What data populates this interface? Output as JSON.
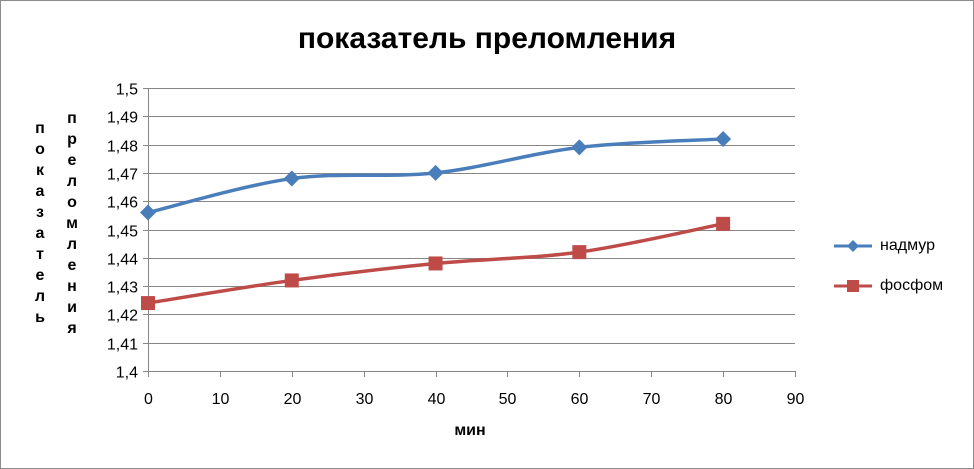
{
  "chart_data": {
    "type": "line",
    "title": "показатель преломления",
    "xlabel": "мин",
    "ylabel": "показатель преломления",
    "ylabel_columns": [
      "показатель",
      "преломления"
    ],
    "xlim": [
      0,
      90
    ],
    "ylim": [
      1.4,
      1.5
    ],
    "x_ticks": [
      "0",
      "10",
      "20",
      "30",
      "40",
      "50",
      "60",
      "70",
      "80",
      "90"
    ],
    "y_ticks": [
      "1,4",
      "1,41",
      "1,42",
      "1,43",
      "1,44",
      "1,45",
      "1,46",
      "1,47",
      "1,48",
      "1,49",
      "1,5"
    ],
    "grid": true,
    "legend_position": "right",
    "series": [
      {
        "name": "надмур",
        "color": "#4a7ebb",
        "marker": "diamond",
        "x": [
          0,
          20,
          40,
          60,
          80
        ],
        "y": [
          1.456,
          1.468,
          1.47,
          1.479,
          1.482
        ]
      },
      {
        "name": "фосфом",
        "color": "#be4b48",
        "marker": "square",
        "x": [
          0,
          20,
          40,
          60,
          80
        ],
        "y": [
          1.424,
          1.432,
          1.438,
          1.442,
          1.452
        ]
      }
    ]
  }
}
